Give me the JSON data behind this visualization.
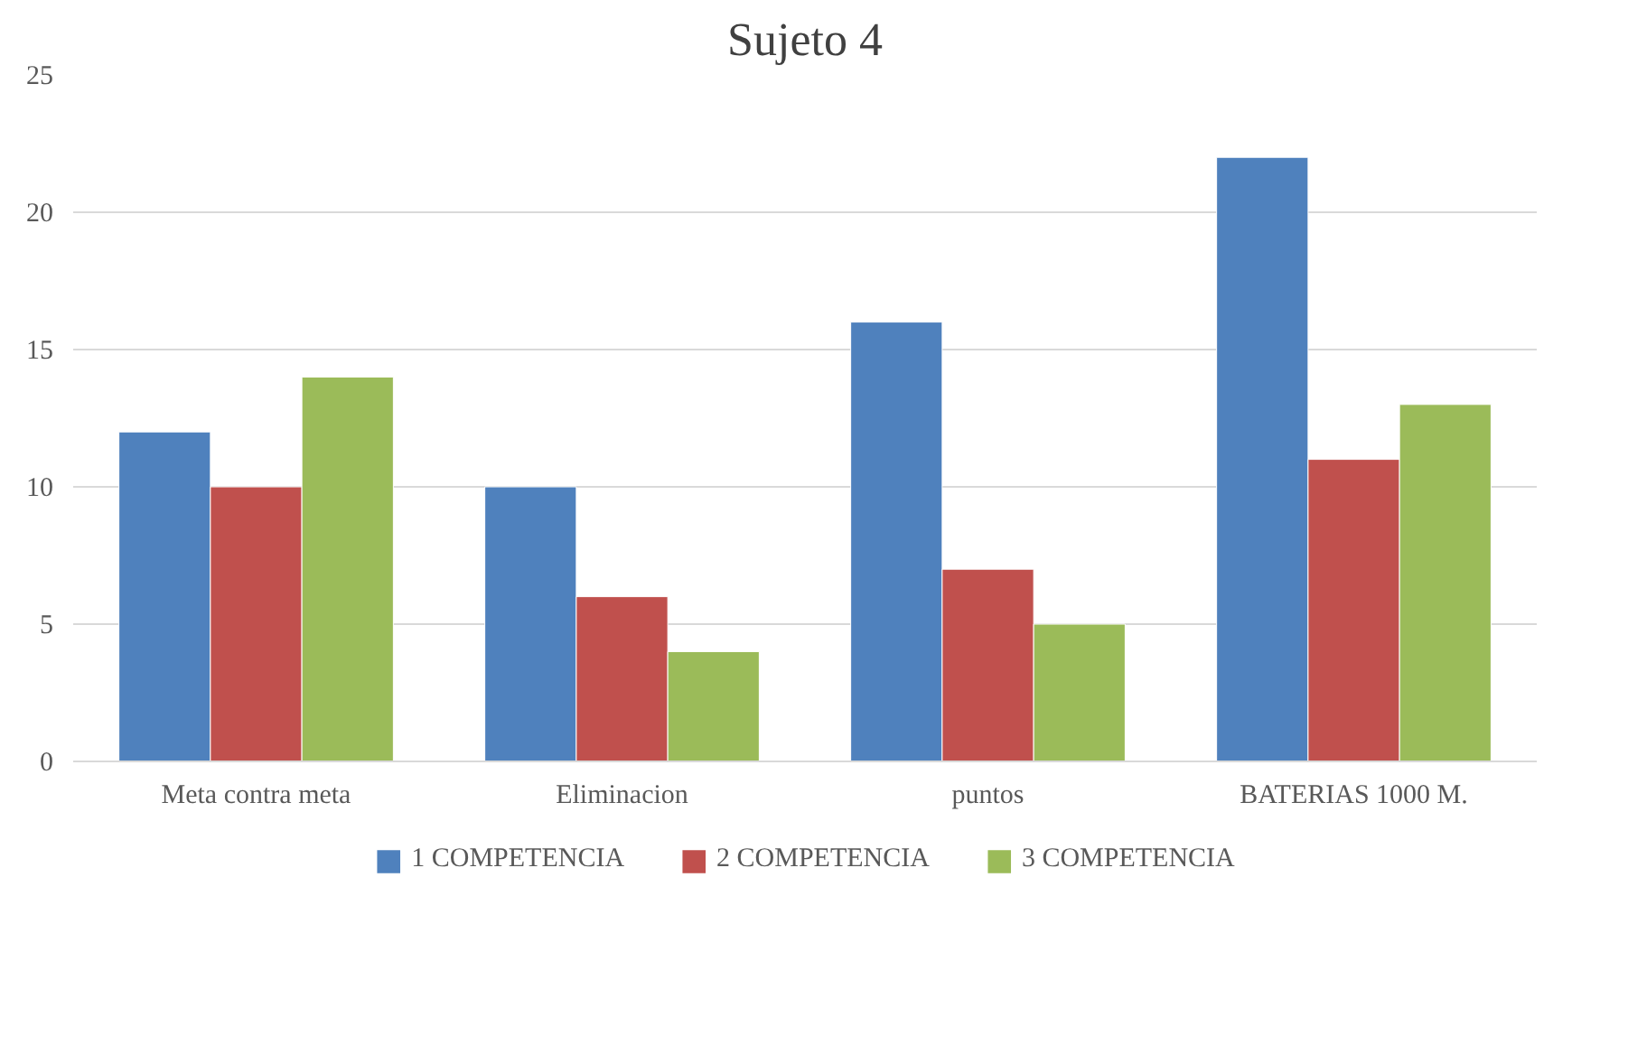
{
  "chart_data": {
    "type": "bar",
    "title": "Sujeto 4",
    "categories": [
      "Meta contra meta",
      "Eliminacion",
      "puntos",
      "BATERIAS 1000 M."
    ],
    "series": [
      {
        "name": "1 COMPETENCIA",
        "color": "#4f81bd",
        "values": [
          12,
          10,
          16,
          22
        ]
      },
      {
        "name": "2 COMPETENCIA",
        "color": "#c0504d",
        "values": [
          10,
          6,
          7,
          11
        ]
      },
      {
        "name": "3 COMPETENCIA",
        "color": "#9bbb59",
        "values": [
          14,
          4,
          5,
          13
        ]
      }
    ],
    "ylim": [
      0,
      25
    ],
    "yticks": [
      0,
      5,
      10,
      15,
      20,
      25
    ],
    "grid": "y",
    "legend": "bottom"
  }
}
